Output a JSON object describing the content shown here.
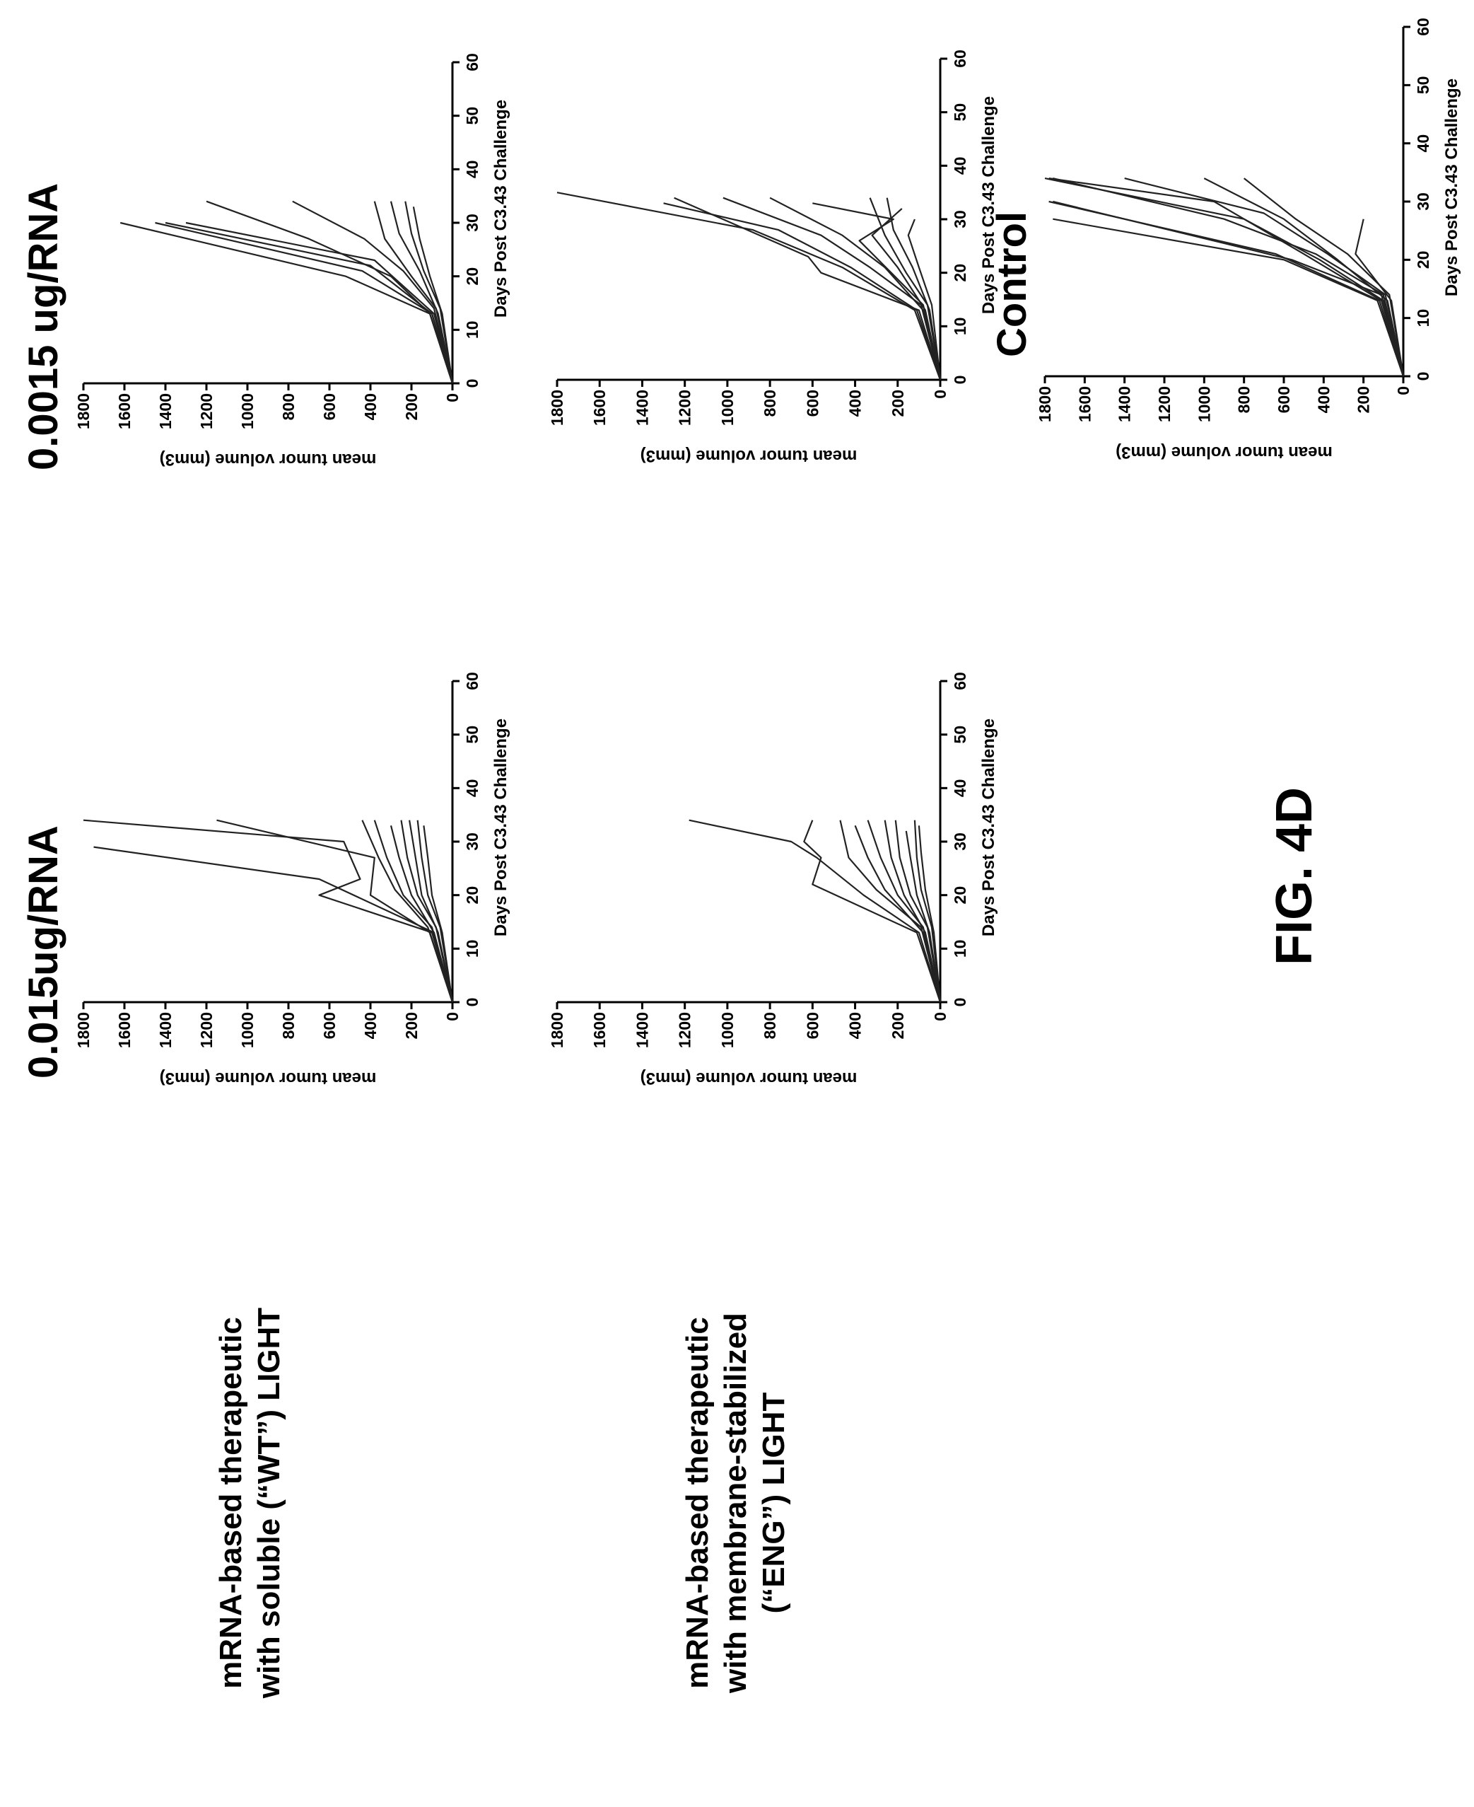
{
  "figure_label": "FIG. 4D",
  "columns": [
    {
      "title": "0.015ug/RNA"
    },
    {
      "title": "0.0015 ug/RNA"
    }
  ],
  "rows": [
    {
      "label_lines": [
        "mRNA-based therapeutic",
        "with soluble (“WT”) LIGHT"
      ]
    },
    {
      "label_lines": [
        "mRNA-based therapeutic",
        "with membrane-stabilized",
        "(“ENG”) LIGHT"
      ]
    }
  ],
  "control_title": "Control",
  "chart_data": [
    {
      "id": "wt-0.015",
      "type": "line",
      "xlabel": "Days Post C3.43 Challenge",
      "ylabel": "mean tumor volume (mm3)",
      "xlim": [
        0,
        60
      ],
      "ylim": [
        0,
        1800
      ],
      "xticks": [
        0,
        10,
        20,
        30,
        40,
        50,
        60
      ],
      "yticks": [
        0,
        200,
        400,
        600,
        800,
        1000,
        1200,
        1400,
        1600,
        1800
      ],
      "series": [
        {
          "x": [
            0,
            13,
            23,
            29
          ],
          "y": [
            0,
            90,
            650,
            1750
          ]
        },
        {
          "x": [
            0,
            13,
            20,
            23,
            30,
            34
          ],
          "y": [
            0,
            100,
            650,
            450,
            530,
            1800
          ]
        },
        {
          "x": [
            0,
            13,
            20,
            27,
            34
          ],
          "y": [
            0,
            110,
            400,
            380,
            1150
          ]
        },
        {
          "x": [
            0,
            14,
            21,
            27,
            34
          ],
          "y": [
            0,
            120,
            280,
            360,
            440
          ]
        },
        {
          "x": [
            0,
            14,
            20,
            27,
            34
          ],
          "y": [
            0,
            100,
            240,
            320,
            380
          ]
        },
        {
          "x": [
            0,
            13,
            20,
            27,
            33
          ],
          "y": [
            0,
            90,
            200,
            260,
            300
          ]
        },
        {
          "x": [
            0,
            14,
            20,
            27,
            34
          ],
          "y": [
            0,
            80,
            170,
            220,
            250
          ]
        },
        {
          "x": [
            0,
            13,
            20,
            27,
            34
          ],
          "y": [
            0,
            70,
            150,
            180,
            210
          ]
        },
        {
          "x": [
            0,
            14,
            20,
            27,
            34
          ],
          "y": [
            0,
            60,
            120,
            150,
            170
          ]
        },
        {
          "x": [
            0,
            13,
            20,
            27,
            33
          ],
          "y": [
            0,
            50,
            100,
            120,
            140
          ]
        }
      ]
    },
    {
      "id": "wt-0.0015",
      "type": "line",
      "xlabel": "Days Post C3.43 Challenge",
      "ylabel": "mean tumor volume (mm3)",
      "xlim": [
        0,
        60
      ],
      "ylim": [
        0,
        1800
      ],
      "xticks": [
        0,
        10,
        20,
        30,
        40,
        50,
        60
      ],
      "yticks": [
        0,
        200,
        400,
        600,
        800,
        1000,
        1200,
        1400,
        1600,
        1800
      ],
      "series": [
        {
          "x": [
            0,
            13,
            20,
            30
          ],
          "y": [
            0,
            110,
            520,
            1620
          ]
        },
        {
          "x": [
            0,
            13,
            21,
            30
          ],
          "y": [
            0,
            100,
            440,
            1450
          ]
        },
        {
          "x": [
            0,
            13,
            22,
            30
          ],
          "y": [
            0,
            100,
            400,
            1400
          ]
        },
        {
          "x": [
            0,
            13,
            23,
            30
          ],
          "y": [
            0,
            90,
            380,
            1300
          ]
        },
        {
          "x": [
            0,
            13,
            20,
            27,
            34
          ],
          "y": [
            0,
            110,
            300,
            700,
            1200
          ]
        },
        {
          "x": [
            0,
            14,
            21,
            27,
            34
          ],
          "y": [
            0,
            90,
            240,
            430,
            780
          ]
        },
        {
          "x": [
            0,
            14,
            20,
            27,
            34
          ],
          "y": [
            0,
            80,
            200,
            330,
            380
          ]
        },
        {
          "x": [
            0,
            13,
            21,
            28,
            34
          ],
          "y": [
            0,
            70,
            160,
            260,
            300
          ]
        },
        {
          "x": [
            0,
            14,
            21,
            28,
            34
          ],
          "y": [
            0,
            60,
            140,
            200,
            230
          ]
        },
        {
          "x": [
            0,
            13,
            20,
            27,
            33
          ],
          "y": [
            0,
            50,
            110,
            160,
            190
          ]
        }
      ]
    },
    {
      "id": "eng-0.015",
      "type": "line",
      "xlabel": "Days Post C3.43 Challenge",
      "ylabel": "mean tumor volume (mm3)",
      "xlim": [
        0,
        60
      ],
      "ylim": [
        0,
        1800
      ],
      "xticks": [
        0,
        10,
        20,
        30,
        40,
        50,
        60
      ],
      "yticks": [
        0,
        200,
        400,
        600,
        800,
        1000,
        1200,
        1400,
        1600,
        1800
      ],
      "series": [
        {
          "x": [
            0,
            13,
            20,
            27,
            30,
            34
          ],
          "y": [
            0,
            100,
            360,
            580,
            700,
            1180
          ]
        },
        {
          "x": [
            0,
            13,
            22,
            27,
            30,
            34
          ],
          "y": [
            0,
            110,
            600,
            560,
            640,
            600
          ]
        },
        {
          "x": [
            0,
            14,
            21,
            27,
            34
          ],
          "y": [
            0,
            90,
            300,
            430,
            470
          ]
        },
        {
          "x": [
            0,
            13,
            21,
            27,
            33
          ],
          "y": [
            0,
            80,
            260,
            340,
            400
          ]
        },
        {
          "x": [
            0,
            14,
            20,
            27,
            34
          ],
          "y": [
            0,
            80,
            200,
            280,
            340
          ]
        },
        {
          "x": [
            0,
            13,
            20,
            27,
            34
          ],
          "y": [
            0,
            70,
            170,
            230,
            260
          ]
        },
        {
          "x": [
            0,
            14,
            20,
            27,
            34
          ],
          "y": [
            0,
            60,
            140,
            190,
            210
          ]
        },
        {
          "x": [
            0,
            13,
            20,
            27,
            32
          ],
          "y": [
            0,
            50,
            110,
            140,
            160
          ]
        },
        {
          "x": [
            0,
            14,
            21,
            27,
            34
          ],
          "y": [
            0,
            40,
            90,
            110,
            120
          ]
        },
        {
          "x": [
            0,
            13,
            21,
            28,
            33
          ],
          "y": [
            0,
            30,
            70,
            90,
            100
          ]
        }
      ]
    },
    {
      "id": "eng-0.0015",
      "type": "line",
      "xlabel": "Days Post C3.43 Challenge",
      "ylabel": "mean tumor volume (mm3)",
      "xlim": [
        0,
        60
      ],
      "ylim": [
        0,
        1800
      ],
      "xticks": [
        0,
        10,
        20,
        30,
        40,
        50,
        60
      ],
      "yticks": [
        0,
        200,
        400,
        600,
        800,
        1000,
        1200,
        1400,
        1600,
        1800
      ],
      "series": [
        {
          "x": [
            0,
            13,
            21,
            28,
            35
          ],
          "y": [
            0,
            120,
            460,
            880,
            1800
          ]
        },
        {
          "x": [
            0,
            13,
            21,
            28,
            33
          ],
          "y": [
            0,
            110,
            420,
            760,
            1300
          ]
        },
        {
          "x": [
            0,
            13,
            20,
            23,
            34
          ],
          "y": [
            0,
            100,
            560,
            620,
            1250
          ]
        },
        {
          "x": [
            0,
            14,
            21,
            27,
            34
          ],
          "y": [
            0,
            90,
            330,
            560,
            1020
          ]
        },
        {
          "x": [
            0,
            13,
            21,
            27,
            34
          ],
          "y": [
            0,
            80,
            260,
            460,
            800
          ]
        },
        {
          "x": [
            0,
            14,
            20,
            26,
            30,
            33
          ],
          "y": [
            0,
            80,
            230,
            380,
            220,
            600
          ]
        },
        {
          "x": [
            0,
            13,
            21,
            27,
            32
          ],
          "y": [
            0,
            70,
            200,
            320,
            180
          ]
        },
        {
          "x": [
            0,
            14,
            20,
            27,
            34
          ],
          "y": [
            0,
            60,
            160,
            260,
            330
          ]
        },
        {
          "x": [
            0,
            13,
            21,
            28,
            34
          ],
          "y": [
            0,
            50,
            130,
            220,
            250
          ]
        },
        {
          "x": [
            0,
            14,
            21,
            27,
            30
          ],
          "y": [
            0,
            40,
            100,
            150,
            120
          ]
        }
      ]
    },
    {
      "id": "control",
      "type": "line",
      "xlabel": "Days Post C3.43 Challenge",
      "ylabel": "mean tumor volume (mm3)",
      "xlim": [
        0,
        60
      ],
      "ylim": [
        0,
        1800
      ],
      "xticks": [
        0,
        10,
        20,
        30,
        40,
        50,
        60
      ],
      "yticks": [
        0,
        200,
        400,
        600,
        800,
        1000,
        1200,
        1400,
        1600,
        1800
      ],
      "series": [
        {
          "x": [
            0,
            13,
            20,
            27
          ],
          "y": [
            0,
            130,
            600,
            1760
          ]
        },
        {
          "x": [
            0,
            13,
            21,
            30
          ],
          "y": [
            0,
            120,
            640,
            1780
          ]
        },
        {
          "x": [
            0,
            14,
            20,
            30
          ],
          "y": [
            0,
            110,
            560,
            1760
          ]
        },
        {
          "x": [
            0,
            13,
            21,
            27,
            34
          ],
          "y": [
            0,
            110,
            500,
            800,
            1800
          ]
        },
        {
          "x": [
            0,
            14,
            21,
            27,
            34
          ],
          "y": [
            0,
            100,
            440,
            900,
            1760
          ]
        },
        {
          "x": [
            0,
            13,
            20,
            27,
            30,
            34
          ],
          "y": [
            0,
            100,
            420,
            800,
            950,
            1780
          ]
        },
        {
          "x": [
            0,
            14,
            21,
            28,
            34
          ],
          "y": [
            0,
            90,
            380,
            700,
            1400
          ]
        },
        {
          "x": [
            0,
            13,
            20,
            27,
            34
          ],
          "y": [
            0,
            80,
            330,
            600,
            1000
          ]
        },
        {
          "x": [
            0,
            14,
            21,
            27,
            34
          ],
          "y": [
            0,
            70,
            280,
            540,
            800
          ]
        },
        {
          "x": [
            0,
            13,
            21,
            27
          ],
          "y": [
            0,
            60,
            240,
            200
          ]
        }
      ]
    }
  ]
}
